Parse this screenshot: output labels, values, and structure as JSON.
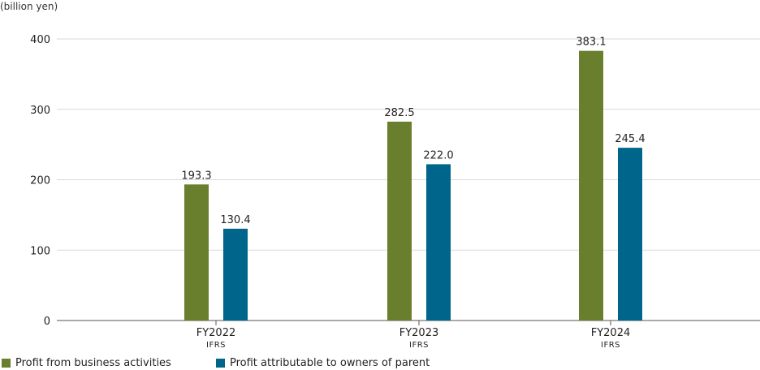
{
  "chart_data": {
    "type": "bar",
    "unit_label": "(billion yen)",
    "categories": [
      {
        "label": "FY2022",
        "sublabel": "IFRS"
      },
      {
        "label": "FY2023",
        "sublabel": "IFRS"
      },
      {
        "label": "FY2024",
        "sublabel": "IFRS"
      }
    ],
    "series": [
      {
        "name": "Profit from business activities",
        "color": "#6a7f2e",
        "values": [
          193.3,
          282.5,
          383.1
        ],
        "value_labels": [
          "193.3",
          "282.5",
          "383.1"
        ]
      },
      {
        "name": "Profit attributable to owners of parent",
        "color": "#00658a",
        "values": [
          130.4,
          222.0,
          245.4
        ],
        "value_labels": [
          "130.4",
          "222.0",
          "245.4"
        ]
      }
    ],
    "y_ticks": [
      0,
      100,
      200,
      300,
      400
    ],
    "ylim": [
      0,
      400
    ],
    "grid": true,
    "legend_position": "bottom-left"
  }
}
